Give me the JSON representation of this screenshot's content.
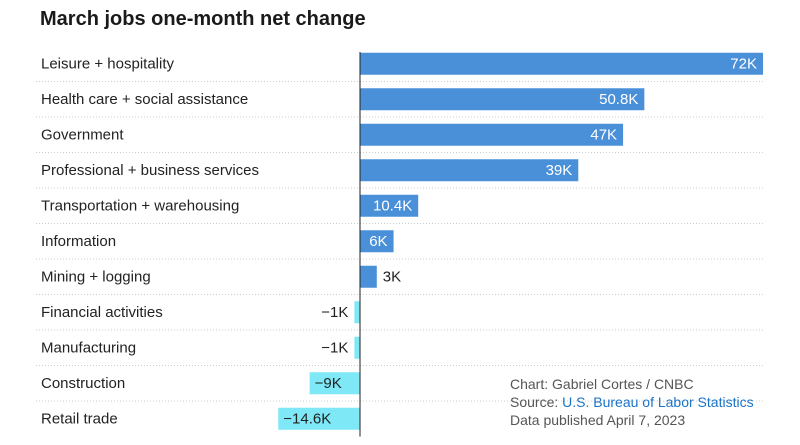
{
  "chart_data": {
    "type": "bar",
    "orientation": "horizontal",
    "title": "March jobs one-month net change",
    "categories": [
      "Leisure + hospitality",
      "Health care + social assistance",
      "Government",
      "Professional + business services",
      "Transportation + warehousing",
      "Information",
      "Mining + logging",
      "Financial activities",
      "Manufacturing",
      "Construction",
      "Retail trade"
    ],
    "values": [
      72,
      50.8,
      47,
      39,
      10.4,
      6,
      3,
      -1,
      -1,
      -9,
      -14.6
    ],
    "value_labels": [
      "72K",
      "50.8K",
      "47K",
      "39K",
      "10.4K",
      "6K",
      "3K",
      "−1K",
      "−1K",
      "−9K",
      "−14.6K"
    ],
    "unit": "thousands of jobs",
    "xlim": [
      -15,
      72
    ],
    "xlabel": "",
    "ylabel": "",
    "grid": false,
    "colors": {
      "positive": "#4a90d9",
      "negative": "#7ee8f7",
      "label_on_bar": "#ffffff",
      "label_off_bar": "#222222",
      "zero_line": "#222222",
      "row_divider": "#cccccc"
    }
  },
  "footer": {
    "chart_credit": "Chart: Gabriel Cortes / CNBC",
    "source_prefix": "Source: ",
    "source_link": "U.S. Bureau of Labor Statistics",
    "published": "Data published April 7, 2023"
  }
}
